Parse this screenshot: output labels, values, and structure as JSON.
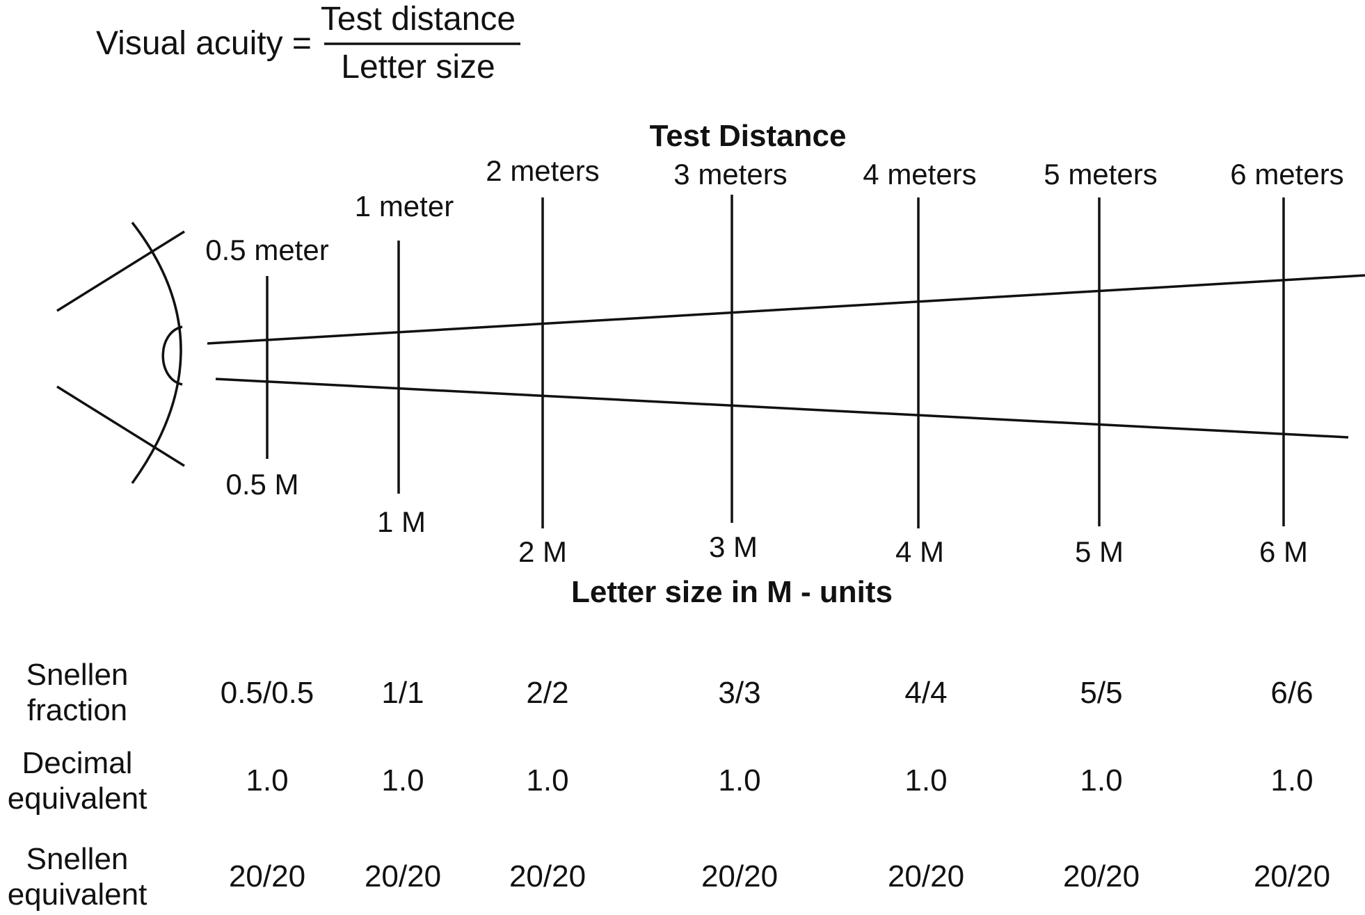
{
  "formula": {
    "lhs": "Visual acuity =",
    "numerator": "Test distance",
    "denominator": "Letter size"
  },
  "test_distance_title": "Test Distance",
  "letter_size_title": "Letter size in M - units",
  "distances": [
    "0.5 meter",
    "1 meter",
    "2 meters",
    "3 meters",
    "4 meters",
    "5 meters",
    "6 meters"
  ],
  "letter_sizes": [
    "0.5 M",
    "1 M",
    "2 M",
    "3 M",
    "4 M",
    "5 M",
    "6 M"
  ],
  "table": {
    "rows": [
      {
        "label": [
          "Snellen",
          "fraction"
        ],
        "values": [
          "0.5/0.5",
          "1/1",
          "2/2",
          "3/3",
          "4/4",
          "5/5",
          "6/6"
        ]
      },
      {
        "label": [
          "Decimal",
          "equivalent"
        ],
        "values": [
          "1.0",
          "1.0",
          "1.0",
          "1.0",
          "1.0",
          "1.0",
          "1.0"
        ]
      },
      {
        "label": [
          "Snellen",
          "equivalent"
        ],
        "values": [
          "20/20",
          "20/20",
          "20/20",
          "20/20",
          "20/20",
          "20/20",
          "20/20"
        ]
      }
    ]
  }
}
